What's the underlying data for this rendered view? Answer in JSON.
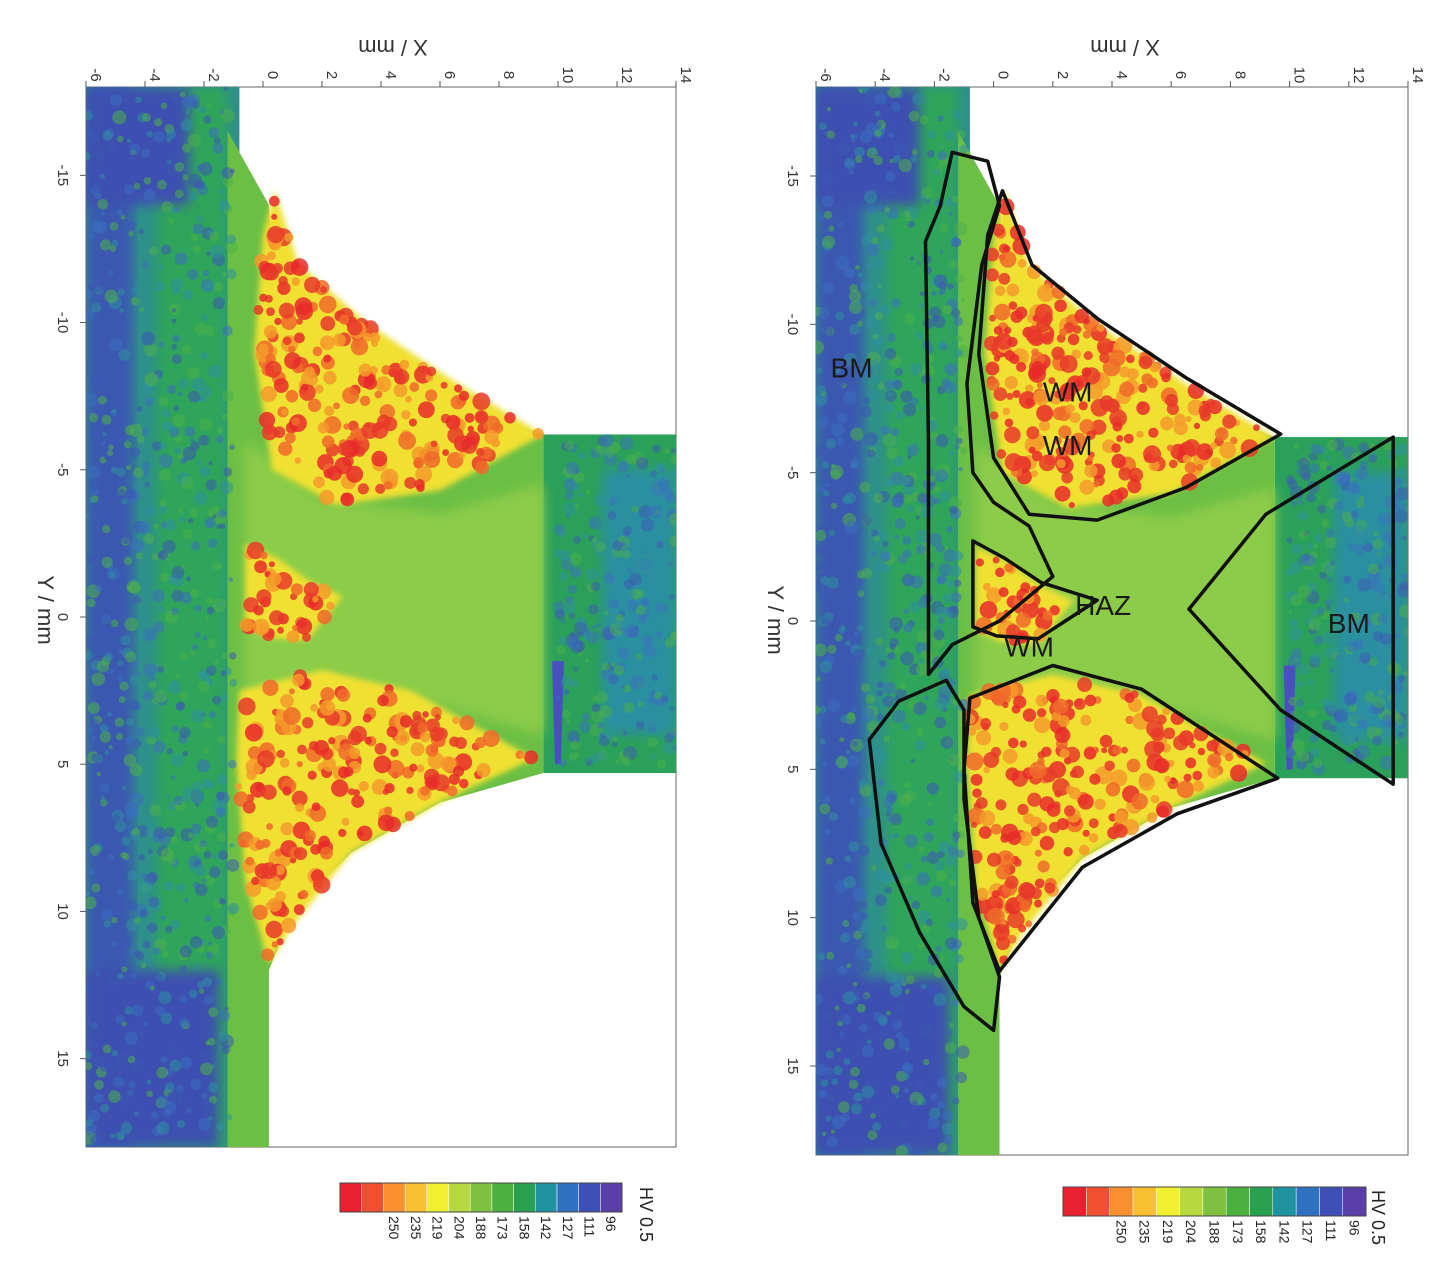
{
  "chart_data": [
    {
      "type": "heatmap",
      "panel": "left",
      "xlabel": "X / mm",
      "ylabel": "Y / mm",
      "x_ticks": [
        "-6",
        "-4",
        "-2",
        "0",
        "2",
        "4",
        "6",
        "8",
        "10",
        "12",
        "14"
      ],
      "y_ticks": [
        "-15",
        "-10",
        "-5",
        "0",
        "5",
        "10",
        "15"
      ],
      "xlim": [
        -6,
        14
      ],
      "ylim": [
        -18,
        18
      ],
      "colorbar": {
        "title": "HV 0.5",
        "labels": [
          "96",
          "111",
          "127",
          "142",
          "158",
          "173",
          "188",
          "204",
          "219",
          "235",
          "250"
        ],
        "colors": [
          "#5a3fa8",
          "#3f4fb8",
          "#3070c0",
          "#1f93a0",
          "#28a050",
          "#4cb040",
          "#80c040",
          "#b8d840",
          "#f0f030",
          "#f8c030",
          "#f89030",
          "#f05030",
          "#e82030"
        ]
      },
      "annotations": []
    },
    {
      "type": "heatmap",
      "panel": "right",
      "xlabel": "X / mm",
      "ylabel": "Y / mm",
      "x_ticks": [
        "-6",
        "-4",
        "-2",
        "0",
        "2",
        "4",
        "6",
        "8",
        "10",
        "12",
        "14"
      ],
      "y_ticks": [
        "-15",
        "-10",
        "-5",
        "0",
        "5",
        "10",
        "15"
      ],
      "xlim": [
        -6,
        14
      ],
      "ylim": [
        -18,
        18
      ],
      "colorbar": {
        "title": "HV 0.5",
        "labels": [
          "96",
          "111",
          "127",
          "142",
          "158",
          "173",
          "188",
          "204",
          "219",
          "235",
          "250"
        ],
        "colors": [
          "#5a3fa8",
          "#3f4fb8",
          "#3070c0",
          "#1f93a0",
          "#28a050",
          "#4cb040",
          "#80c040",
          "#b8d840",
          "#f0f030",
          "#f8c030",
          "#f89030",
          "#f05030",
          "#e82030"
        ]
      },
      "annotations": [
        {
          "text": "BM",
          "x": -4.8,
          "y": -8.2
        },
        {
          "text": "WM",
          "x": 2.5,
          "y": -7.4
        },
        {
          "text": "WM",
          "x": 1.2,
          "y": 1.2
        },
        {
          "text": "HAZ",
          "x": 3.7,
          "y": -0.2
        },
        {
          "text": "WM",
          "x": 2.5,
          "y": -5.6
        },
        {
          "text": "BM",
          "x": 12.0,
          "y": 0.4
        }
      ]
    }
  ]
}
